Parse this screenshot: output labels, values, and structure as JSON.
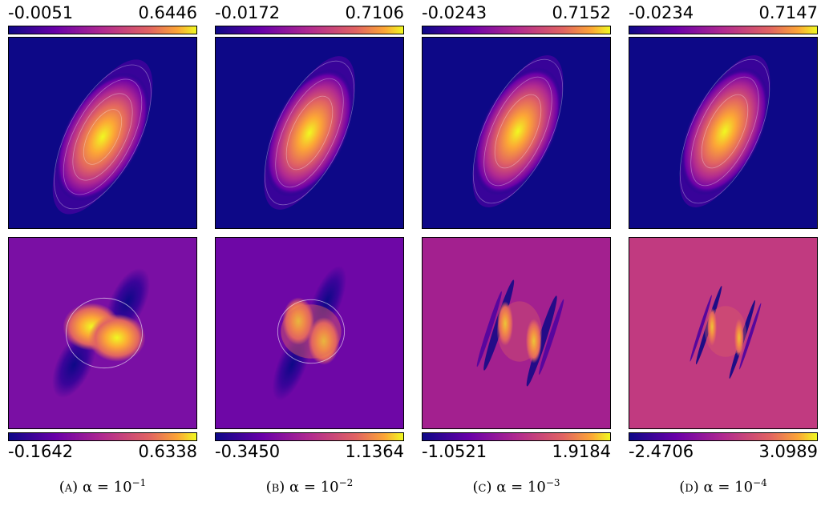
{
  "chart_data": [
    {
      "type": "heatmap",
      "panel": "A",
      "caption_label": "(a)",
      "caption_math": "α = 10",
      "caption_exp": "−1",
      "top_colorbar": {
        "min": "-0.0051",
        "max": "0.6446"
      },
      "bottom_colorbar": {
        "min": "-0.1642",
        "max": "0.6338"
      }
    },
    {
      "type": "heatmap",
      "panel": "B",
      "caption_label": "(b)",
      "caption_math": "α = 10",
      "caption_exp": "−2",
      "top_colorbar": {
        "min": "-0.0172",
        "max": "0.7106"
      },
      "bottom_colorbar": {
        "min": "-0.3450",
        "max": "1.1364"
      }
    },
    {
      "type": "heatmap",
      "panel": "C",
      "caption_label": "(c)",
      "caption_math": "α = 10",
      "caption_exp": "−3",
      "top_colorbar": {
        "min": "-0.0243",
        "max": "0.7152"
      },
      "bottom_colorbar": {
        "min": "-1.0521",
        "max": "1.9184"
      }
    },
    {
      "type": "heatmap",
      "panel": "D",
      "caption_label": "(d)",
      "caption_math": "α = 10",
      "caption_exp": "−4",
      "top_colorbar": {
        "min": "-0.0234",
        "max": "0.7147"
      },
      "bottom_colorbar": {
        "min": "-2.4706",
        "max": "3.0989"
      }
    }
  ],
  "colormap": "plasma",
  "colors": {
    "dark": "#0d0887",
    "mid": "#cc4778",
    "bright": "#f0f921"
  }
}
